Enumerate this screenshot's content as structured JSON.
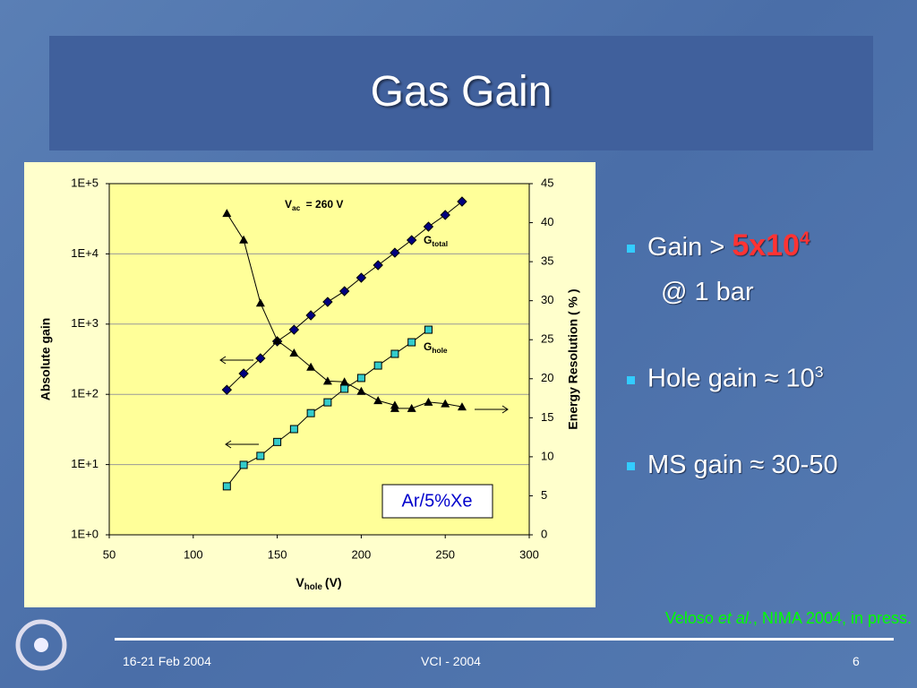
{
  "slide": {
    "title": "Gas Gain",
    "bullets": [
      {
        "text": "Gain > ",
        "emph": "5x10",
        "sup": "4"
      },
      {
        "text": "@ 1 bar"
      },
      {
        "text": "Hole gain ≈ 10",
        "sup": "3"
      },
      {
        "text": "MS gain ≈ 30-50"
      }
    ],
    "citation": {
      "before": "Veloso ",
      "italic": "et al.",
      "after": ", NIMA 2004, in press."
    },
    "footer": {
      "date": "16-21 Feb 2004",
      "event": "VCI  - 2004",
      "page": "6"
    }
  },
  "chart_data": {
    "type": "scatter",
    "ylabel": "Absolute gain",
    "y2label": "Energy Resolution ( % )",
    "xlabel": {
      "main": "V",
      "sub": "hole",
      "rest": "(V)"
    },
    "annotations": [
      {
        "main": "V",
        "sub": "ac",
        "rest": " = 260 V"
      },
      {
        "main": "G",
        "sub": "total"
      },
      {
        "main": "G",
        "sub": "hole"
      },
      {
        "main": "Ar/5%Xe"
      }
    ],
    "xlim": [
      50,
      300
    ],
    "xticks": [
      50,
      100,
      150,
      200,
      250,
      300
    ],
    "ylog": true,
    "ylim": [
      1,
      100000
    ],
    "yticks": [
      {
        "value": 1,
        "label": "1E+0"
      },
      {
        "value": 10,
        "label": "1E+1"
      },
      {
        "value": 100,
        "label": "1E+2"
      },
      {
        "value": 1000,
        "label": "1E+3"
      },
      {
        "value": 10000,
        "label": "1E+4"
      },
      {
        "value": 100000,
        "label": "1E+5"
      }
    ],
    "y2lim": [
      0,
      45
    ],
    "y2ticks": [
      0,
      5,
      10,
      15,
      20,
      25,
      30,
      35,
      40,
      45
    ],
    "grid": true,
    "series": [
      {
        "name": "G_total",
        "color": "#000080",
        "marker": "diamond",
        "x": [
          120,
          130,
          140,
          150,
          160,
          170,
          180,
          190,
          200,
          210,
          220,
          230,
          240,
          250,
          260
        ],
        "values": [
          116,
          198,
          326,
          569,
          832,
          1334,
          2070,
          2944,
          4575,
          6900,
          10400,
          15700,
          24400,
          35800,
          55600
        ]
      },
      {
        "name": "G_hole",
        "color": "#33cccc",
        "marker": "square",
        "x": [
          120,
          130,
          140,
          150,
          160,
          170,
          180,
          190,
          200,
          210,
          220,
          230,
          240
        ],
        "values": [
          4.9,
          9.9,
          13.3,
          21,
          32,
          54,
          77,
          120,
          171,
          257,
          377,
          552,
          832
        ]
      },
      {
        "name": "Energy resolution",
        "color": "#000000",
        "marker": "triangle",
        "axis": "y2",
        "x": [
          120,
          130,
          140,
          150,
          160,
          170,
          180,
          190,
          200,
          210,
          220,
          220,
          230,
          240,
          250,
          260
        ],
        "values": [
          41.2,
          37.8,
          29.7,
          24.9,
          23.3,
          21.5,
          19.7,
          19.6,
          18.4,
          17.2,
          16.6,
          16.2,
          16.2,
          17.0,
          16.8,
          16.4
        ]
      }
    ]
  }
}
